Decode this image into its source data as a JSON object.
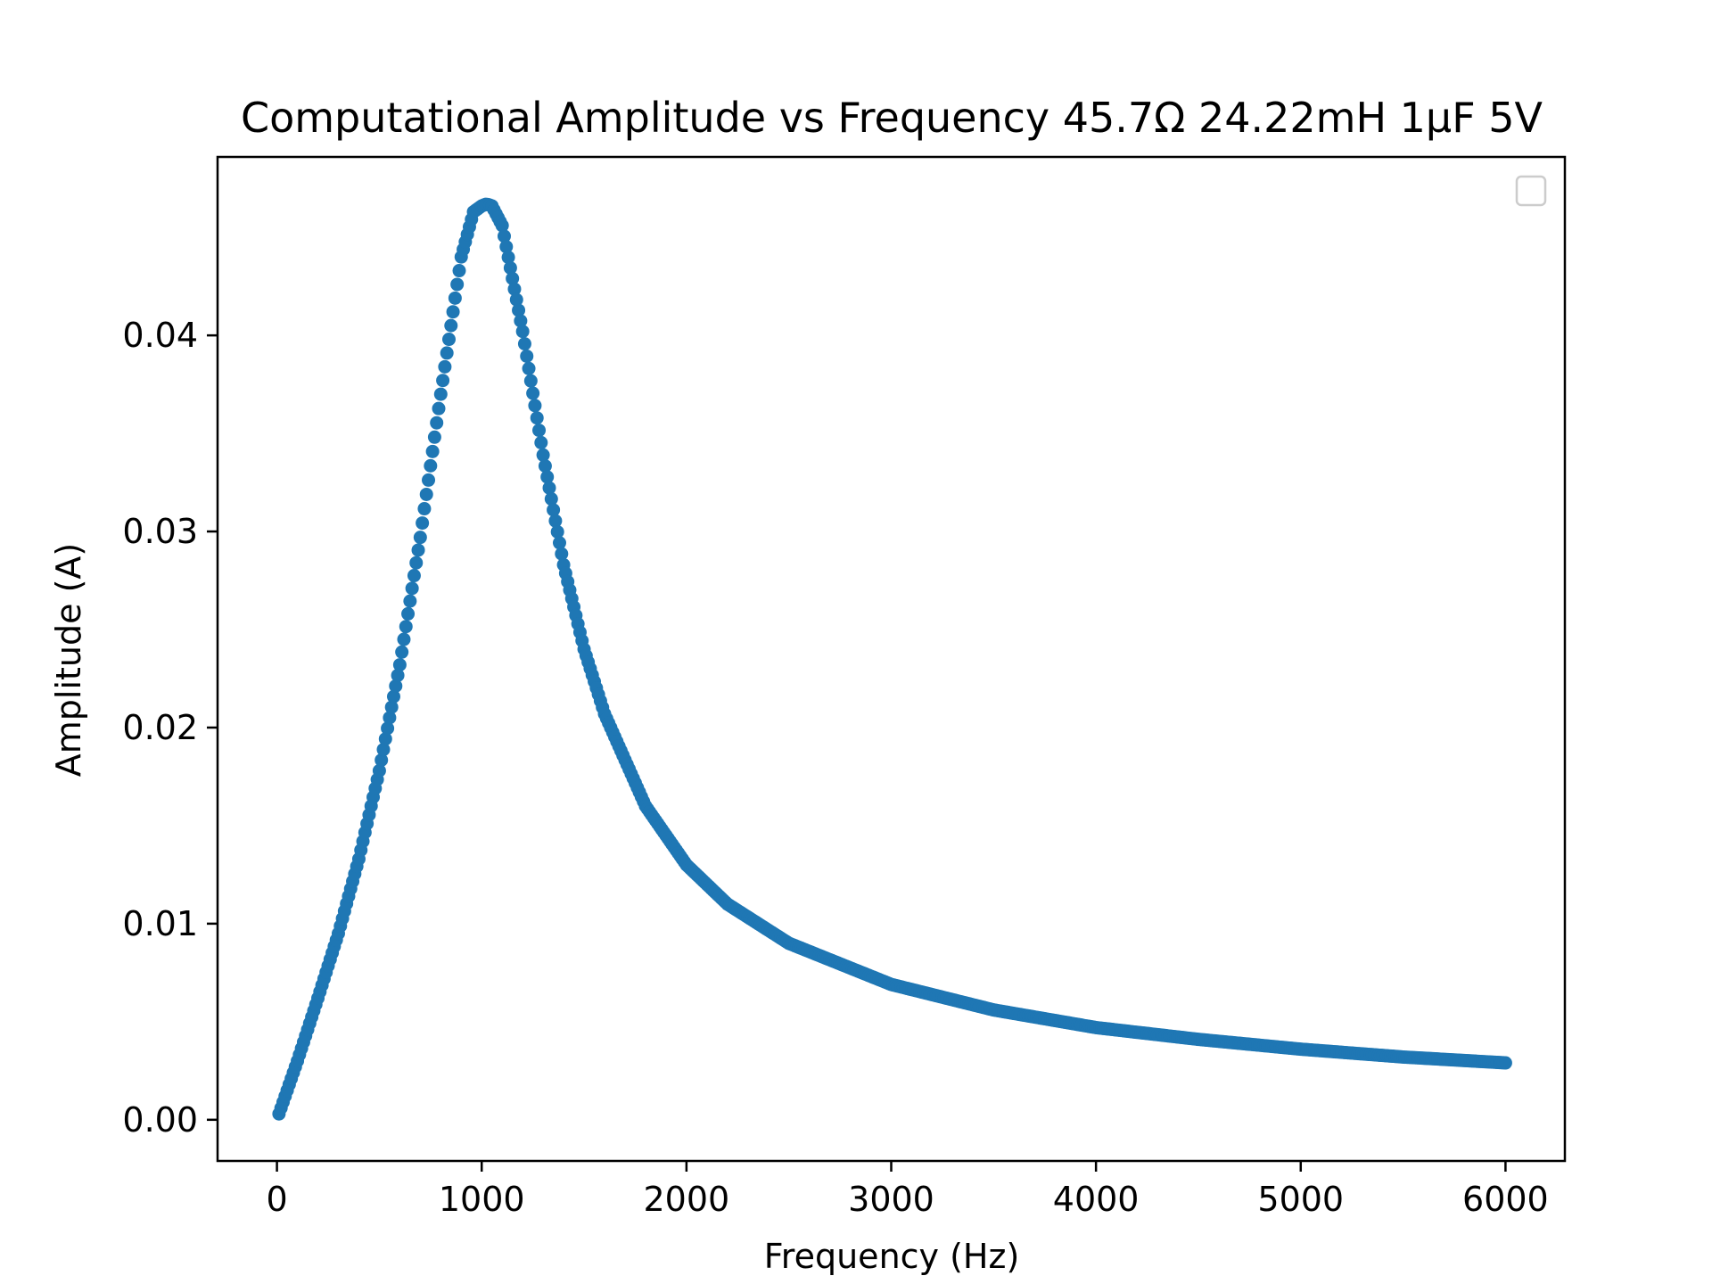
{
  "chart_data": {
    "type": "scatter",
    "title": "Computational Amplitude vs Frequency 45.7Ω 24.22mH 1μF 5V",
    "xlabel": "Frequency (Hz)",
    "ylabel": "Amplitude (A)",
    "xlim": [
      -290,
      6290
    ],
    "ylim": [
      -0.0021,
      0.0491
    ],
    "xticks": [
      0,
      1000,
      2000,
      3000,
      4000,
      5000,
      6000
    ],
    "yticks": [
      0.0,
      0.01,
      0.02,
      0.03,
      0.04
    ],
    "xtick_labels": [
      "0",
      "1000",
      "2000",
      "3000",
      "4000",
      "5000",
      "6000"
    ],
    "ytick_labels": [
      "0.00",
      "0.01",
      "0.02",
      "0.03",
      "0.04"
    ],
    "grid": false,
    "legend": {
      "placement": "top-right",
      "entries": []
    },
    "series": [
      {
        "color": "#1f77b4",
        "points": [
          [
            10,
            0.0003
          ],
          [
            100,
            0.003
          ],
          [
            200,
            0.0062
          ],
          [
            300,
            0.0095
          ],
          [
            400,
            0.0133
          ],
          [
            500,
            0.0178
          ],
          [
            600,
            0.0232
          ],
          [
            700,
            0.0297
          ],
          [
            800,
            0.037
          ],
          [
            900,
            0.044
          ],
          [
            960,
            0.0463
          ],
          [
            1000,
            0.0466
          ],
          [
            1023,
            0.0467
          ],
          [
            1050,
            0.0466
          ],
          [
            1100,
            0.0456
          ],
          [
            1200,
            0.0402
          ],
          [
            1300,
            0.0339
          ],
          [
            1400,
            0.0283
          ],
          [
            1500,
            0.024
          ],
          [
            1600,
            0.0207
          ],
          [
            1800,
            0.016
          ],
          [
            2000,
            0.013
          ],
          [
            2200,
            0.011
          ],
          [
            2500,
            0.009
          ],
          [
            3000,
            0.0069
          ],
          [
            3500,
            0.0056
          ],
          [
            4000,
            0.0047
          ],
          [
            4500,
            0.0041
          ],
          [
            5000,
            0.0036
          ],
          [
            5500,
            0.0032
          ],
          [
            6000,
            0.0029
          ]
        ]
      }
    ]
  }
}
